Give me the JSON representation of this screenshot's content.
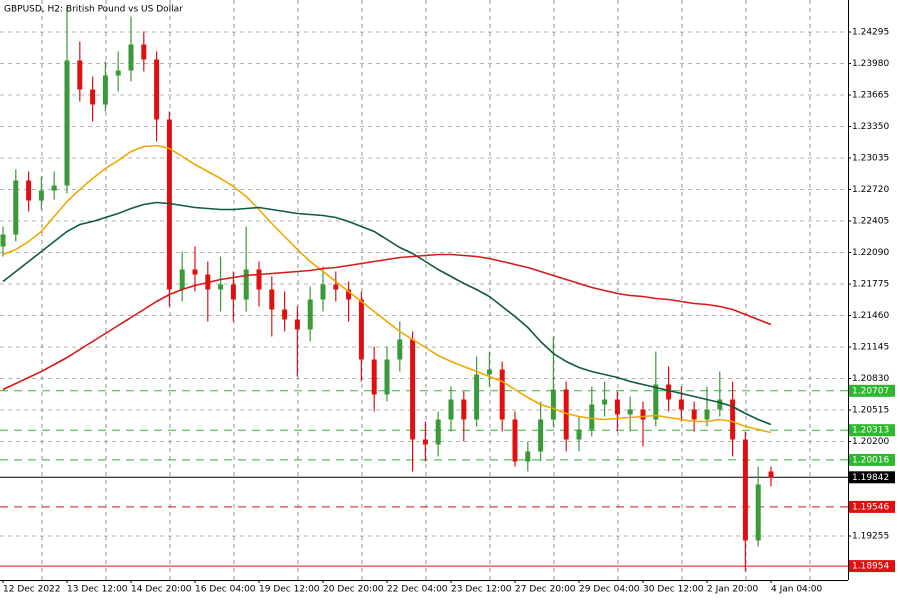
{
  "chart_data": {
    "type": "candlestick",
    "title": "GBPUSD, H2:  British Pound vs US Dollar",
    "categories": [
      "12 Dec 2022",
      null,
      null,
      null,
      null,
      "13 Dec 12:00",
      null,
      null,
      null,
      null,
      "14 Dec 20:00",
      null,
      null,
      null,
      null,
      "16 Dec 04:00",
      null,
      null,
      null,
      null,
      "19 Dec 12:00",
      null,
      null,
      null,
      null,
      "20 Dec 20:00",
      null,
      null,
      null,
      null,
      "22 Dec 04:00",
      null,
      null,
      null,
      null,
      "23 Dec 12:00",
      null,
      null,
      null,
      null,
      "27 Dec 20:00",
      null,
      null,
      null,
      null,
      "29 Dec 04:00",
      null,
      null,
      null,
      null,
      "30 Dec 12:00",
      null,
      null,
      null,
      null,
      "2 Jan 20:00",
      null,
      null,
      null,
      null,
      "4 Jan 04:00"
    ],
    "open": [
      1.2215,
      1.2227,
      1.2281,
      1.2261,
      1.2271,
      1.2276,
      1.2401,
      1.2372,
      1.2357,
      1.2386,
      1.2391,
      1.2417,
      1.2402,
      1.2342,
      1.2172,
      1.2192,
      1.2187,
      1.2172,
      1.2177,
      1.2162,
      1.2192,
      1.2172,
      1.2152,
      1.2142,
      1.2132,
      1.2162,
      1.2177,
      1.2172,
      1.2162,
      1.2102,
      1.2067,
      1.2102,
      1.2122,
      1.2022,
      1.2017,
      1.2042,
      1.2062,
      1.2042,
      1.2087,
      1.2092,
      1.2042,
      1.2,
      1.201,
      1.2042,
      1.2072,
      1.2022,
      1.2032,
      1.2057,
      1.2062,
      1.2047,
      1.2052,
      1.2042,
      1.2077,
      1.2062,
      1.2052,
      1.2042,
      1.2052,
      1.2062,
      1.2022,
      1.1921,
      1.199
    ],
    "high": [
      1.2235,
      1.2292,
      1.229,
      1.2285,
      1.229,
      1.2455,
      1.242,
      1.2385,
      1.24,
      1.241,
      1.2445,
      1.243,
      1.241,
      1.235,
      1.221,
      1.2215,
      1.22,
      1.2205,
      1.219,
      1.2235,
      1.22,
      1.2185,
      1.217,
      1.2155,
      1.2175,
      1.2195,
      1.219,
      1.218,
      1.217,
      1.2115,
      1.2115,
      1.214,
      1.213,
      1.204,
      1.205,
      1.2075,
      1.207,
      1.2105,
      1.211,
      1.21,
      1.205,
      1.202,
      1.206,
      1.2125,
      1.208,
      1.2045,
      1.2075,
      1.208,
      1.207,
      1.2065,
      1.206,
      1.211,
      1.2095,
      1.2075,
      1.206,
      1.2075,
      1.209,
      1.208,
      1.203,
      1.1995,
      1.1995
    ],
    "low": [
      1.2205,
      1.222,
      1.225,
      1.2252,
      1.2262,
      1.2268,
      1.236,
      1.234,
      1.235,
      1.237,
      1.238,
      1.239,
      1.232,
      1.2155,
      1.216,
      1.217,
      1.214,
      1.215,
      1.214,
      1.215,
      1.2155,
      1.2125,
      1.213,
      1.2085,
      1.212,
      1.215,
      1.216,
      1.214,
      1.208,
      1.205,
      1.206,
      1.209,
      1.199,
      1.2,
      1.2005,
      1.203,
      1.202,
      1.2035,
      1.2075,
      1.203,
      1.1995,
      1.199,
      1.2,
      1.2035,
      1.201,
      1.201,
      1.2025,
      1.2045,
      1.203,
      1.203,
      1.2015,
      1.2035,
      1.205,
      1.204,
      1.203,
      1.2035,
      1.2045,
      1.2005,
      1.189,
      1.1915,
      1.1975
    ],
    "close": [
      1.2227,
      1.2281,
      1.2261,
      1.2271,
      1.2276,
      1.2401,
      1.2372,
      1.2357,
      1.2386,
      1.2391,
      1.2417,
      1.2402,
      1.2342,
      1.2172,
      1.2192,
      1.2187,
      1.2172,
      1.2177,
      1.2162,
      1.2192,
      1.2172,
      1.2152,
      1.2142,
      1.2132,
      1.2162,
      1.2177,
      1.2172,
      1.2162,
      1.2102,
      1.2067,
      1.2102,
      1.2122,
      1.2022,
      1.2017,
      1.2042,
      1.2062,
      1.2042,
      1.2087,
      1.2092,
      1.2042,
      1.2,
      1.201,
      1.2042,
      1.2072,
      1.2022,
      1.2032,
      1.2057,
      1.2062,
      1.2047,
      1.2052,
      1.2042,
      1.2077,
      1.2062,
      1.2052,
      1.2042,
      1.2052,
      1.2062,
      1.2022,
      1.1921,
      1.1977,
      1.1984
    ],
    "up_color": "#3a9a3a",
    "down_color": "#e01010",
    "lines": [
      {
        "color": "#f0a800",
        "values": [
          1.2207,
          1.2212,
          1.222,
          1.223,
          1.2245,
          1.226,
          1.2272,
          1.2283,
          1.2293,
          1.2301,
          1.231,
          1.2315,
          1.2316,
          1.2313,
          1.2305,
          1.2297,
          1.229,
          1.2283,
          1.2275,
          1.2265,
          1.2252,
          1.2238,
          1.2225,
          1.2212,
          1.22,
          1.219,
          1.218,
          1.217,
          1.216,
          1.215,
          1.214,
          1.213,
          1.2122,
          1.2114,
          1.2106,
          1.21,
          1.2095,
          1.209,
          1.2085,
          1.208,
          1.2072,
          1.2064,
          1.2057,
          1.2053,
          1.2048,
          1.2045,
          1.2043,
          1.2042,
          1.2043,
          1.2044,
          1.2045,
          1.2046,
          1.2044,
          1.2042,
          1.204,
          1.204,
          1.2042,
          1.204,
          1.2035,
          1.2032,
          1.2029
        ]
      },
      {
        "color": "#0f5a45",
        "values": [
          1.218,
          1.219,
          1.22,
          1.221,
          1.222,
          1.223,
          1.2237,
          1.224,
          1.2244,
          1.2248,
          1.2253,
          1.2257,
          1.2259,
          1.2258,
          1.2256,
          1.2254,
          1.2253,
          1.2252,
          1.2252,
          1.2253,
          1.2254,
          1.2252,
          1.225,
          1.2248,
          1.2247,
          1.2246,
          1.2244,
          1.224,
          1.2235,
          1.223,
          1.2222,
          1.2214,
          1.2208,
          1.22,
          1.2192,
          1.2185,
          1.2178,
          1.2172,
          1.2165,
          1.2155,
          1.2145,
          1.2134,
          1.212,
          1.2108,
          1.21,
          1.2094,
          1.209,
          1.2087,
          1.2084,
          1.208,
          1.2077,
          1.2074,
          1.2071,
          1.2068,
          1.2065,
          1.2062,
          1.2059,
          1.2055,
          1.2048,
          1.2042,
          1.2037
        ]
      },
      {
        "color": "#d81818",
        "values": [
          1.2072,
          1.2078,
          1.2084,
          1.209,
          1.2097,
          1.2104,
          1.2112,
          1.212,
          1.2128,
          1.2136,
          1.2144,
          1.2152,
          1.216,
          1.2167,
          1.2172,
          1.2176,
          1.2179,
          1.2182,
          1.2184,
          1.2186,
          1.2187,
          1.2188,
          1.2189,
          1.219,
          1.2191,
          1.2193,
          1.2194,
          1.2196,
          1.2198,
          1.22,
          1.2202,
          1.2204,
          1.2205,
          1.2206,
          1.2207,
          1.2207,
          1.2206,
          1.2205,
          1.2203,
          1.22,
          1.2197,
          1.2194,
          1.219,
          1.2186,
          1.2182,
          1.2178,
          1.2174,
          1.2171,
          1.2168,
          1.2166,
          1.2165,
          1.2163,
          1.2162,
          1.216,
          1.2158,
          1.2157,
          1.2155,
          1.2152,
          1.2147,
          1.2142,
          1.2137
        ]
      }
    ],
    "ylim": [
      1.18815,
      1.24615
    ],
    "yticks": [
      1.24295,
      {
        "value": 1.2398,
        "label": "1.23980"
      },
      1.23665,
      {
        "value": 1.2335,
        "label": "1.23350"
      },
      1.23035,
      {
        "value": 1.2272,
        "label": "1.22720"
      },
      1.22405,
      {
        "value": 1.2209,
        "label": "1.22090"
      },
      1.21775,
      {
        "value": 1.2146,
        "label": "1.21460"
      },
      1.21145,
      {
        "value": 1.2083,
        "label": "1.20830"
      },
      1.20515,
      {
        "value": 1.202,
        "label": "1.20200"
      },
      1.19255
    ],
    "grid": true,
    "levels": [
      {
        "value": 1.20707,
        "color": "#2db82d",
        "style": "dashed"
      },
      {
        "value": 1.20313,
        "color": "#2db82d",
        "style": "dashed"
      },
      {
        "value": 1.20016,
        "color": "#2db82d",
        "style": "dashed"
      },
      {
        "value": 1.19842,
        "color": "#000000",
        "style": "solid"
      },
      {
        "value": 1.19546,
        "color": "#e01010",
        "style": "dashed"
      },
      {
        "value": 1.18954,
        "color": "#e01010",
        "style": "solid"
      }
    ]
  }
}
